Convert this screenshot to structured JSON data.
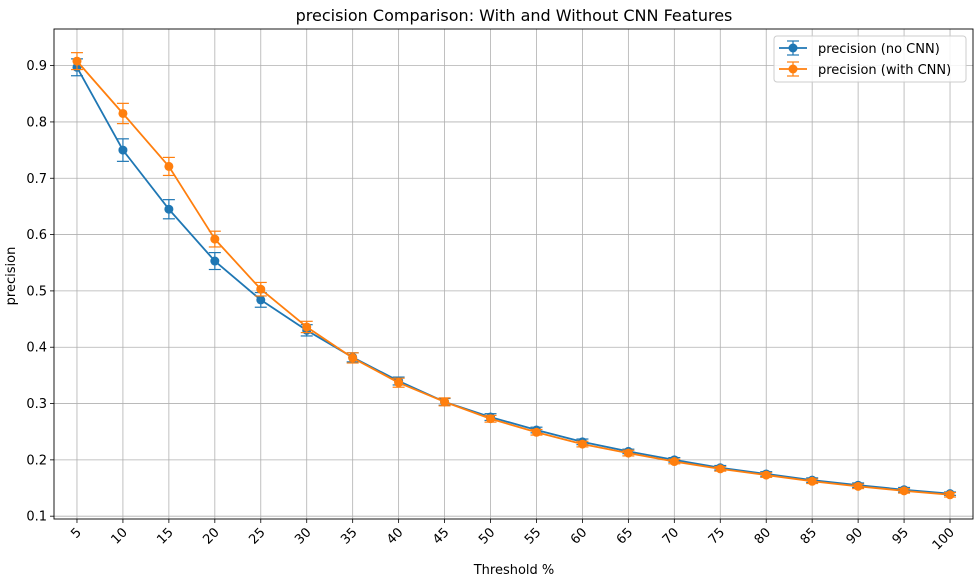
{
  "chart_data": {
    "type": "line",
    "title": "precision Comparison: With and Without CNN Features",
    "xlabel": "Threshold %",
    "ylabel": "precision",
    "x": [
      5,
      10,
      15,
      20,
      25,
      30,
      35,
      40,
      45,
      50,
      55,
      60,
      65,
      70,
      75,
      80,
      85,
      90,
      95,
      100
    ],
    "xticks": [
      "5",
      "10",
      "15",
      "20",
      "25",
      "30",
      "35",
      "40",
      "45",
      "50",
      "55",
      "60",
      "65",
      "70",
      "75",
      "80",
      "85",
      "90",
      "95",
      "100"
    ],
    "yticks": [
      "0.1",
      "0.2",
      "0.3",
      "0.4",
      "0.5",
      "0.6",
      "0.7",
      "0.8",
      "0.9"
    ],
    "ylim": [
      0.095,
      0.965
    ],
    "grid": true,
    "legend_position": "top-right",
    "series": [
      {
        "name": "precision (no CNN)",
        "color": "#1f77b4",
        "values": [
          0.897,
          0.75,
          0.645,
          0.553,
          0.484,
          0.43,
          0.382,
          0.34,
          0.303,
          0.276,
          0.253,
          0.232,
          0.215,
          0.2,
          0.186,
          0.175,
          0.164,
          0.155,
          0.147,
          0.14
        ],
        "errors": [
          0.015,
          0.02,
          0.017,
          0.015,
          0.013,
          0.01,
          0.008,
          0.007,
          0.006,
          0.006,
          0.005,
          0.005,
          0.004,
          0.004,
          0.004,
          0.004,
          0.004,
          0.004,
          0.004,
          0.003
        ]
      },
      {
        "name": "precision (with CNN)",
        "color": "#ff7f0e",
        "values": [
          0.908,
          0.815,
          0.721,
          0.592,
          0.503,
          0.436,
          0.381,
          0.337,
          0.303,
          0.273,
          0.249,
          0.228,
          0.212,
          0.197,
          0.184,
          0.173,
          0.162,
          0.153,
          0.145,
          0.138
        ]
      }
    ]
  }
}
